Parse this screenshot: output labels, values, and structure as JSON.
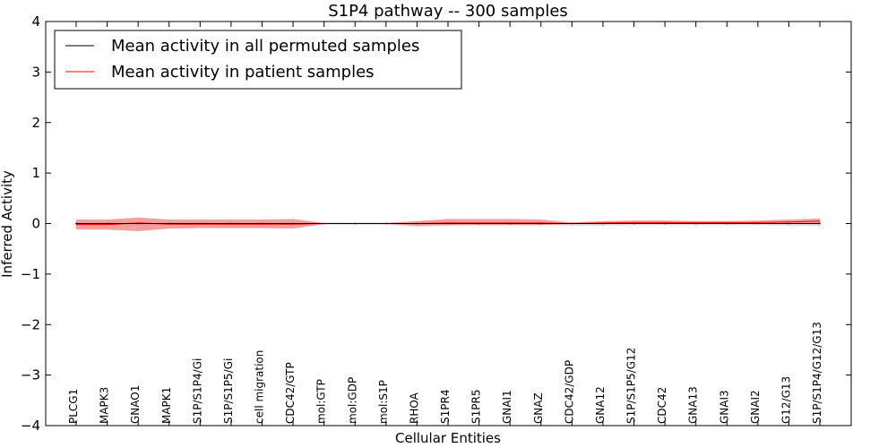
{
  "chart_data": {
    "type": "line",
    "title": "S1P4 pathway -- 300 samples",
    "xlabel": "Cellular Entities",
    "ylabel": "Inferred Activity",
    "ylim": [
      -4,
      4
    ],
    "yticks": [
      4,
      3,
      2,
      1,
      0,
      -1,
      -2,
      -3,
      -4
    ],
    "ytick_labels": [
      "4",
      "3",
      "2",
      "1",
      "0",
      "−1",
      "−2",
      "−3",
      "−4"
    ],
    "grid": false,
    "legend_position": "top-left",
    "categories": [
      "PLCG1",
      "MAPK3",
      "GNAO1",
      "MAPK1",
      "S1P/S1P4/Gi",
      "S1P/S1P5/Gi",
      "cell migration",
      "CDC42/GTP",
      "mol:GTP",
      "mol:GDP",
      "mol:S1P",
      "RHOA",
      "S1PR4",
      "S1PR5",
      "GNAI1",
      "GNAZ",
      "CDC42/GDP",
      "GNA12",
      "S1P/S1P5/G12",
      "CDC42",
      "GNA13",
      "GNAI3",
      "GNAI2",
      "G12/G13",
      "S1P/S1P4/G12/G13"
    ],
    "series": [
      {
        "name": "Mean activity in all permuted samples",
        "color": "#000000",
        "values": [
          0,
          0,
          0,
          0,
          0,
          0,
          0,
          0,
          0,
          0,
          0,
          0,
          0,
          0,
          0,
          0,
          0,
          0,
          0,
          0,
          0,
          0,
          0,
          0,
          0
        ],
        "lower": [
          -0.03,
          -0.03,
          -0.04,
          -0.03,
          -0.03,
          -0.03,
          -0.03,
          -0.03,
          -0.02,
          -0.02,
          -0.02,
          -0.06,
          -0.04,
          -0.03,
          -0.03,
          -0.03,
          -0.04,
          -0.04,
          -0.03,
          -0.03,
          -0.03,
          -0.03,
          -0.03,
          -0.04,
          -0.05
        ],
        "upper": [
          0.03,
          0.03,
          0.04,
          0.03,
          0.03,
          0.03,
          0.03,
          0.03,
          0.02,
          0.02,
          0.02,
          0.04,
          0.04,
          0.03,
          0.03,
          0.03,
          0.03,
          0.03,
          0.03,
          0.03,
          0.03,
          0.03,
          0.03,
          0.04,
          0.04
        ]
      },
      {
        "name": "Mean activity in patient samples",
        "color": "#ff0000",
        "band_color": "#f08080",
        "values": [
          -0.02,
          -0.02,
          0.01,
          -0.01,
          -0.01,
          -0.01,
          -0.01,
          -0.01,
          0.0,
          0.0,
          0.0,
          0.0,
          0.01,
          0.01,
          0.01,
          0.01,
          0.0,
          0.01,
          0.02,
          0.02,
          0.02,
          0.02,
          0.02,
          0.03,
          0.05
        ],
        "lower": [
          -0.12,
          -0.12,
          -0.15,
          -0.1,
          -0.09,
          -0.09,
          -0.09,
          -0.1,
          -0.01,
          -0.01,
          -0.01,
          -0.04,
          -0.03,
          -0.03,
          -0.03,
          -0.03,
          -0.01,
          -0.01,
          0.0,
          0.0,
          0.0,
          0.0,
          0.0,
          0.0,
          0.0
        ],
        "upper": [
          0.08,
          0.08,
          0.12,
          0.08,
          0.08,
          0.08,
          0.08,
          0.09,
          0.01,
          0.01,
          0.01,
          0.05,
          0.09,
          0.09,
          0.09,
          0.08,
          0.02,
          0.05,
          0.06,
          0.06,
          0.05,
          0.05,
          0.06,
          0.08,
          0.1
        ]
      }
    ]
  }
}
